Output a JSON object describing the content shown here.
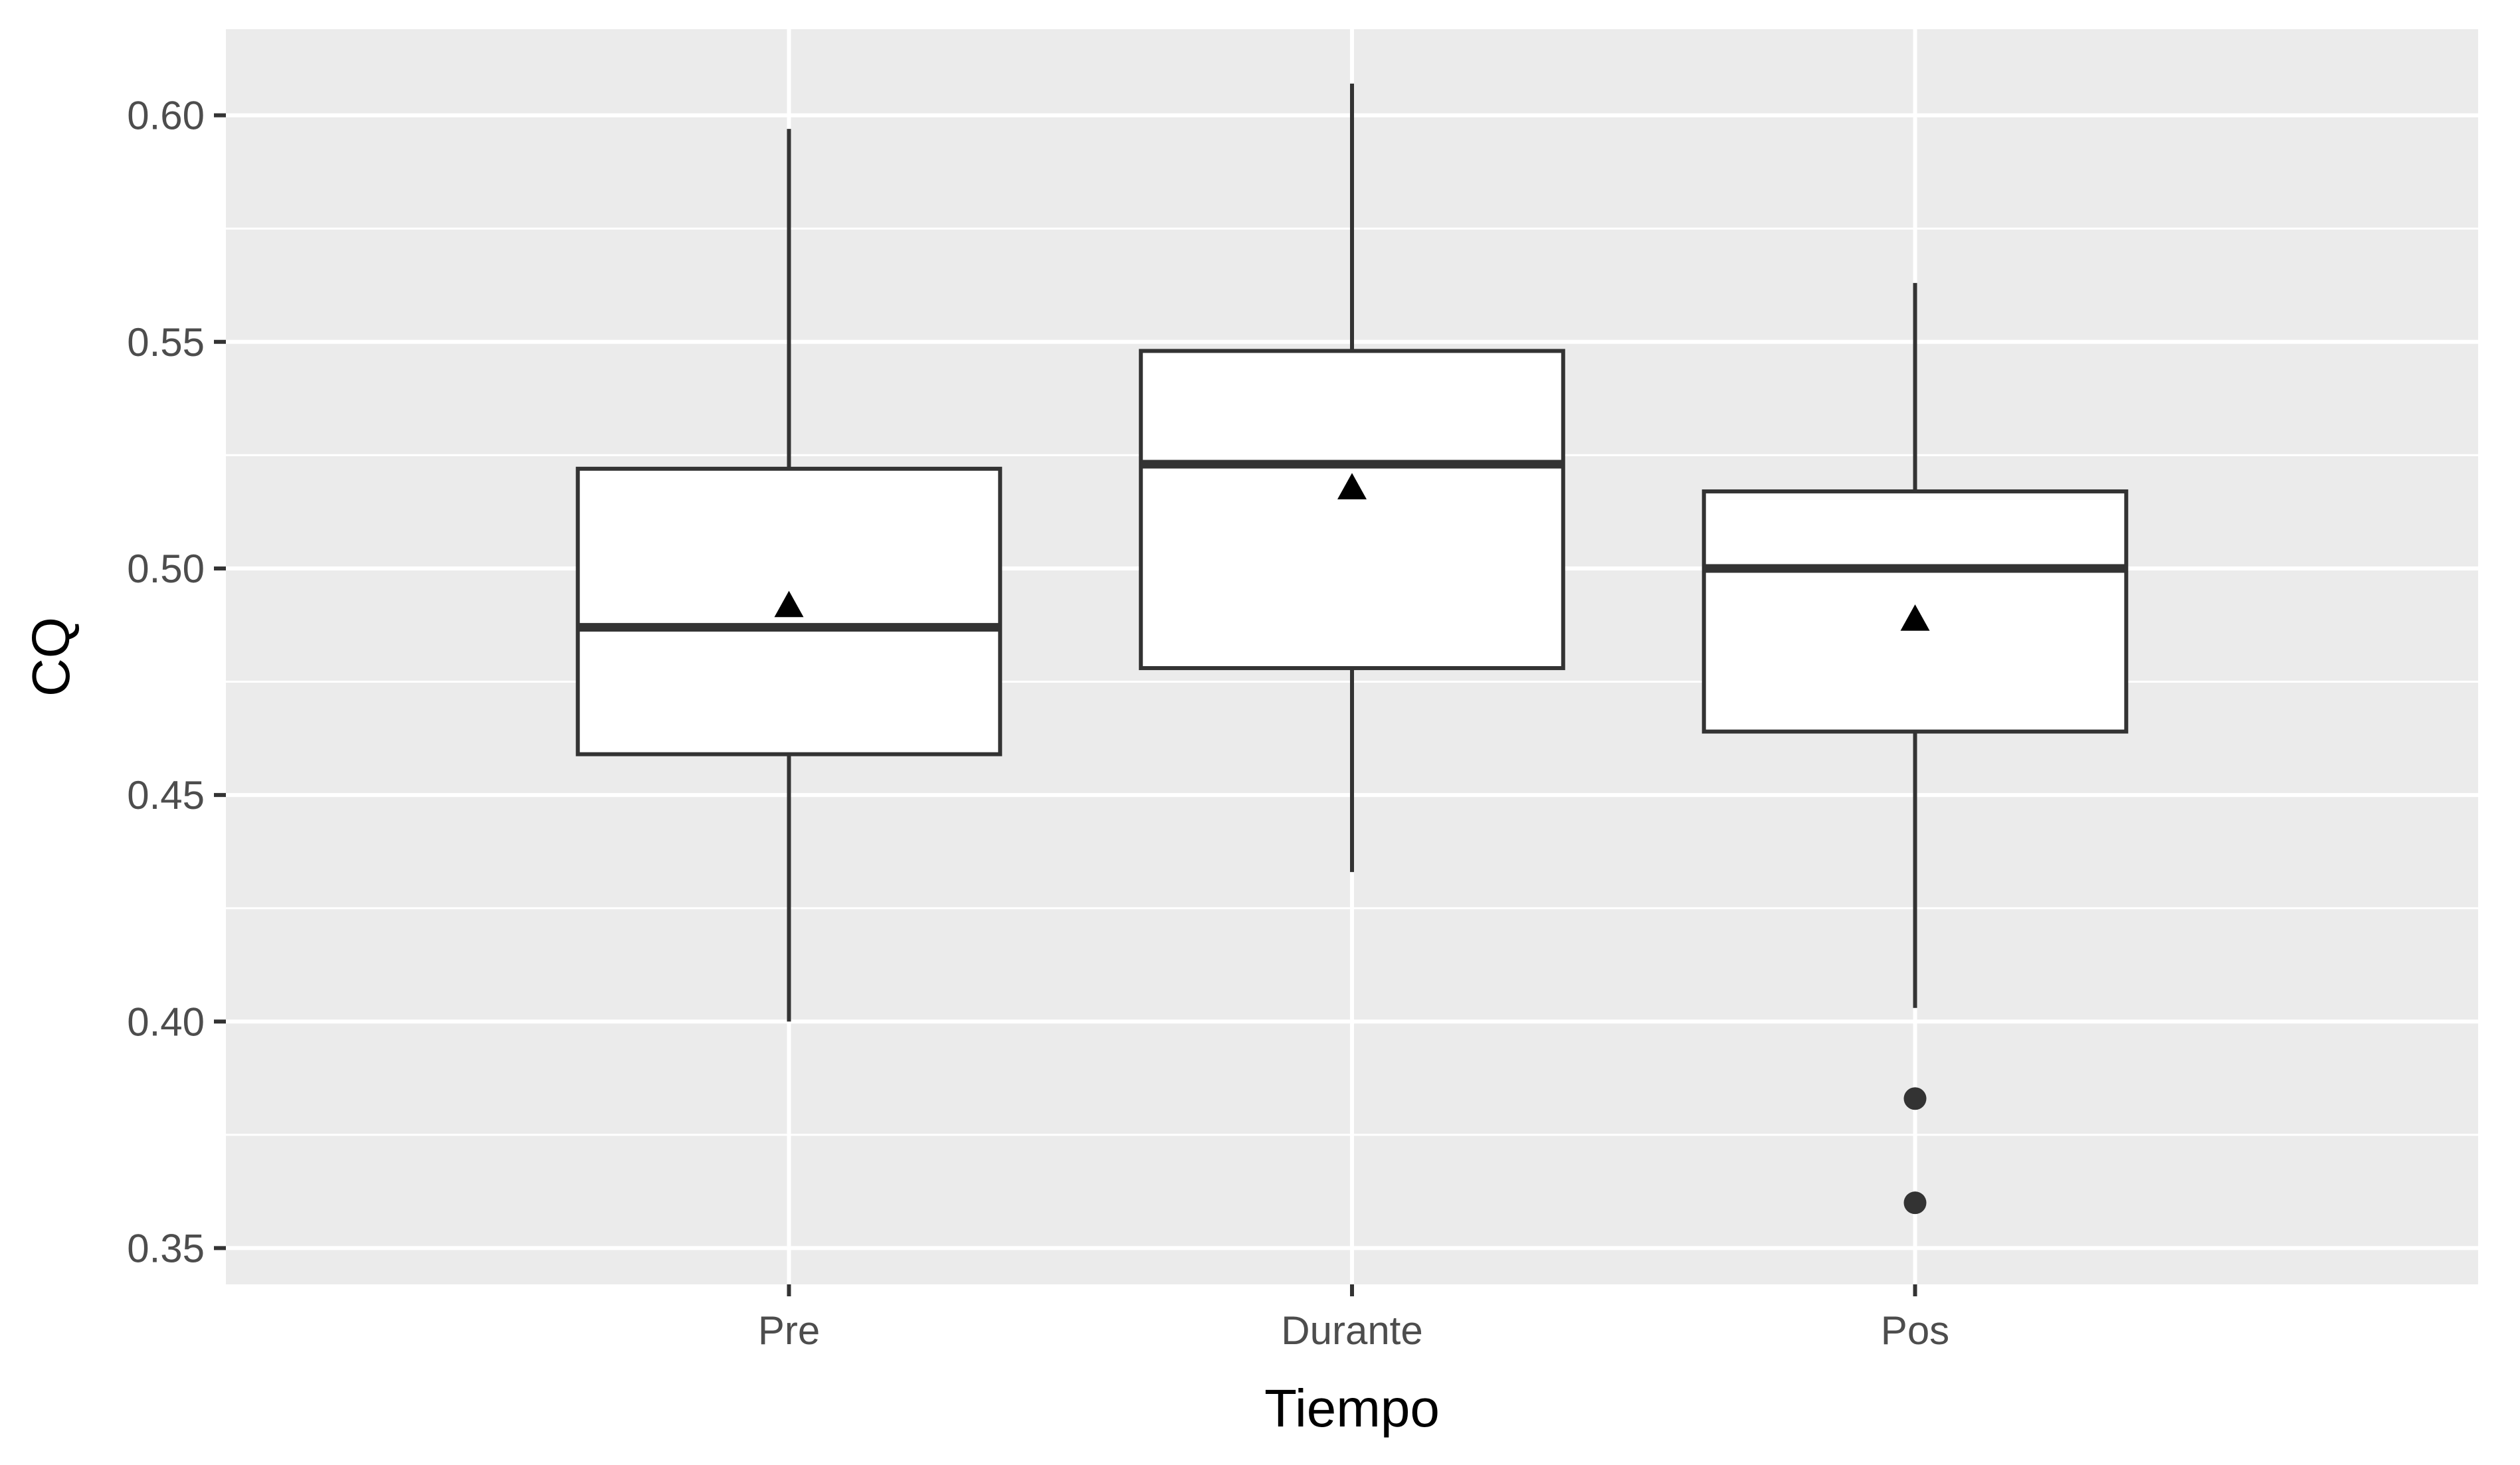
{
  "chart_data": {
    "type": "boxplot",
    "title": "",
    "xlabel": "Tiempo",
    "ylabel": "CQ",
    "categories": [
      "Pre",
      "Durante",
      "Pos"
    ],
    "ylim": [
      0.342,
      0.619
    ],
    "yticks": [
      0.35,
      0.4,
      0.45,
      0.5,
      0.55,
      0.6
    ],
    "ytick_labels": [
      "0.35",
      "0.40",
      "0.45",
      "0.50",
      "0.55",
      "0.60"
    ],
    "grid": true,
    "legend": "none",
    "boxes": [
      {
        "category": "Pre",
        "whisker_low": 0.4,
        "q1": 0.459,
        "median": 0.487,
        "q3": 0.522,
        "whisker_high": 0.597,
        "mean": 0.492,
        "outliers": []
      },
      {
        "category": "Durante",
        "whisker_low": 0.433,
        "q1": 0.478,
        "median": 0.523,
        "q3": 0.548,
        "whisker_high": 0.607,
        "mean": 0.518,
        "outliers": []
      },
      {
        "category": "Pos",
        "whisker_low": 0.403,
        "q1": 0.464,
        "median": 0.5,
        "q3": 0.517,
        "whisker_high": 0.563,
        "mean": 0.489,
        "outliers": [
          0.383,
          0.36
        ]
      }
    ],
    "colors": {
      "panel_background": "#ebebeb",
      "grid_major": "#ffffff",
      "box_fill": "#ffffff",
      "box_stroke": "#333333",
      "mean_marker": "#000000",
      "outlier": "#333333",
      "tick_mark": "#333333"
    }
  }
}
